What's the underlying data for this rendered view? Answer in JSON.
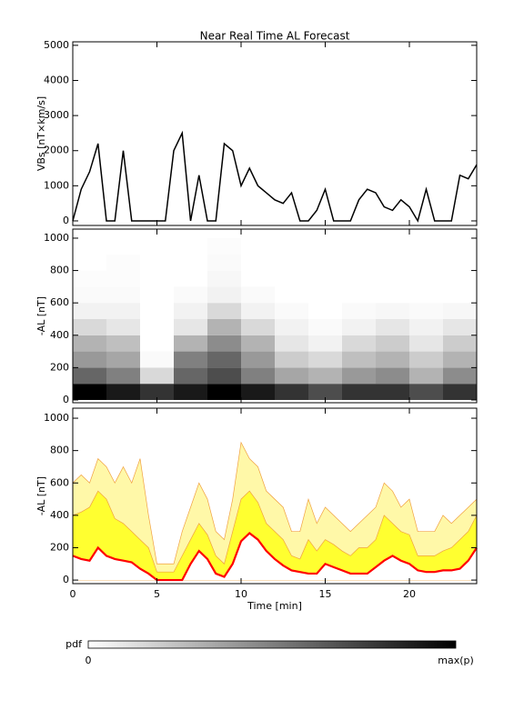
{
  "title": "Near Real Time AL Forecast",
  "x_label": "Time [min]",
  "colorbar": {
    "label": "pdf",
    "min_label": "0",
    "max_label": "max(p)"
  },
  "chart_data": [
    {
      "type": "line",
      "y_label": "VBs [nT×km/s]",
      "color": "#000000",
      "x": [
        0,
        0.5,
        1,
        1.5,
        2,
        2.5,
        3,
        3.5,
        4,
        4.5,
        5,
        5.5,
        6,
        6.5,
        7,
        7.5,
        8,
        8.5,
        9,
        9.5,
        10,
        10.5,
        11,
        11.5,
        12,
        12.5,
        13,
        13.5,
        14,
        14.5,
        15,
        15.5,
        16,
        16.5,
        17,
        17.5,
        18,
        18.5,
        19,
        19.5,
        20,
        20.5,
        21,
        21.5,
        22,
        22.5,
        23,
        23.5,
        24
      ],
      "values": [
        0,
        900,
        1400,
        2200,
        0,
        0,
        2000,
        0,
        0,
        0,
        0,
        0,
        2000,
        2500,
        0,
        1300,
        0,
        0,
        2200,
        2000,
        1000,
        1500,
        1000,
        800,
        600,
        500,
        800,
        0,
        0,
        300,
        900,
        0,
        0,
        0,
        600,
        900,
        800,
        400,
        300,
        600,
        400,
        0,
        900,
        0,
        0,
        0,
        1300,
        1200,
        1600
      ],
      "xlim": [
        0,
        24
      ],
      "xticks": [
        0,
        5,
        10,
        15,
        20
      ],
      "ylim": [
        -130,
        5100
      ],
      "yticks": [
        0,
        1000,
        2000,
        3000,
        4000,
        5000
      ]
    },
    {
      "type": "heatmap",
      "y_label": "-AL [nT]",
      "x_edges": [
        0,
        2,
        4,
        6,
        8,
        10,
        12,
        14,
        16,
        18,
        20,
        22,
        24
      ],
      "y_edges": [
        0,
        100,
        200,
        300,
        400,
        500,
        600,
        700,
        800,
        900,
        1000
      ],
      "density": [
        [
          1,
          0.6,
          0.4,
          0.3,
          0.15,
          0.05,
          0.02,
          0.01,
          0,
          0
        ],
        [
          0.9,
          0.5,
          0.35,
          0.25,
          0.1,
          0.05,
          0.02,
          0.01,
          0.01,
          0
        ],
        [
          0.8,
          0.15,
          0.02,
          0,
          0,
          0,
          0,
          0,
          0,
          0
        ],
        [
          0.9,
          0.6,
          0.5,
          0.3,
          0.1,
          0.05,
          0.02,
          0,
          0,
          0
        ],
        [
          1,
          0.7,
          0.6,
          0.45,
          0.3,
          0.15,
          0.05,
          0.03,
          0.02,
          0.01
        ],
        [
          0.9,
          0.5,
          0.4,
          0.3,
          0.15,
          0.05,
          0.02,
          0,
          0,
          0
        ],
        [
          0.8,
          0.35,
          0.2,
          0.1,
          0.05,
          0.02,
          0,
          0,
          0,
          0
        ],
        [
          0.7,
          0.3,
          0.15,
          0.05,
          0.02,
          0,
          0,
          0,
          0,
          0
        ],
        [
          0.8,
          0.4,
          0.25,
          0.15,
          0.05,
          0.02,
          0,
          0,
          0,
          0
        ],
        [
          0.8,
          0.45,
          0.3,
          0.2,
          0.1,
          0.03,
          0,
          0,
          0,
          0
        ],
        [
          0.7,
          0.3,
          0.2,
          0.1,
          0.05,
          0.02,
          0,
          0,
          0,
          0
        ],
        [
          0.8,
          0.45,
          0.3,
          0.2,
          0.1,
          0.03,
          0,
          0,
          0,
          0
        ]
      ],
      "xlim": [
        0,
        24
      ],
      "xticks": [
        0,
        5,
        10,
        15,
        20
      ],
      "ylim": [
        -17,
        1056
      ],
      "yticks": [
        0,
        200,
        400,
        600,
        800,
        1000
      ]
    },
    {
      "type": "band",
      "y_label": "-AL [nT]",
      "x": [
        0,
        0.5,
        1,
        1.5,
        2,
        2.5,
        3,
        3.5,
        4,
        4.5,
        5,
        5.5,
        6,
        6.5,
        7,
        7.5,
        8,
        8.5,
        9,
        9.5,
        10,
        10.5,
        11,
        11.5,
        12,
        12.5,
        13,
        13.5,
        14,
        14.5,
        15,
        15.5,
        16,
        16.5,
        17,
        17.5,
        18,
        18.5,
        19,
        19.5,
        20,
        20.5,
        21,
        21.5,
        22,
        22.5,
        23,
        23.5,
        24
      ],
      "series": [
        {
          "color": "#fff8a8",
          "values": [
            600,
            650,
            600,
            750,
            700,
            600,
            700,
            600,
            750,
            400,
            100,
            100,
            100,
            300,
            450,
            600,
            500,
            300,
            250,
            500,
            850,
            750,
            700,
            550,
            500,
            450,
            300,
            300,
            500,
            350,
            450,
            400,
            350,
            300,
            350,
            400,
            450,
            600,
            550,
            450,
            500,
            300,
            300,
            300,
            400,
            350,
            400,
            450,
            500
          ]
        },
        {
          "color": "#ffff30",
          "values": [
            400,
            420,
            450,
            550,
            500,
            380,
            350,
            300,
            250,
            200,
            50,
            50,
            50,
            150,
            250,
            350,
            280,
            150,
            100,
            300,
            500,
            550,
            480,
            350,
            300,
            250,
            150,
            130,
            250,
            180,
            250,
            220,
            180,
            150,
            200,
            200,
            250,
            400,
            350,
            300,
            280,
            150,
            150,
            150,
            180,
            200,
            250,
            300,
            400
          ]
        },
        {
          "color": "#ff0000",
          "values": [
            150,
            130,
            120,
            200,
            150,
            130,
            120,
            110,
            70,
            40,
            0,
            0,
            0,
            0,
            100,
            180,
            130,
            40,
            20,
            100,
            240,
            290,
            250,
            180,
            130,
            90,
            60,
            50,
            40,
            40,
            100,
            80,
            60,
            40,
            40,
            40,
            80,
            120,
            150,
            120,
            100,
            60,
            50,
            50,
            60,
            60,
            70,
            120,
            200
          ]
        }
      ],
      "xlim": [
        0,
        24
      ],
      "xticks": [
        0,
        5,
        10,
        15,
        20
      ],
      "ylim": [
        -22,
        1062
      ],
      "yticks": [
        0,
        200,
        400,
        600,
        800,
        1000
      ]
    }
  ]
}
